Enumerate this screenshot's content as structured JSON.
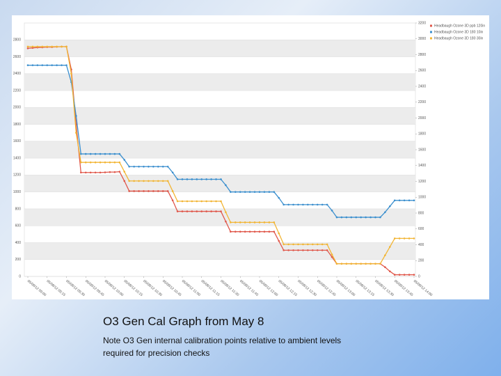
{
  "chart_data": {
    "type": "line",
    "categories": [
      "05/08/12 09:00",
      null,
      null,
      null,
      "05/08/12 09:15",
      null,
      null,
      null,
      "05/08/12 09:30",
      null,
      null,
      null,
      "05/08/12 09:45",
      null,
      null,
      null,
      "05/08/12 10:00",
      null,
      null,
      null,
      "05/08/12 10:15",
      null,
      null,
      null,
      "05/08/12 10:30",
      null,
      null,
      null,
      "05/08/12 10:45",
      null,
      null,
      null,
      "05/08/12 11:00",
      null,
      null,
      null,
      "05/08/12 11:15",
      null,
      null,
      null,
      "05/08/12 11:30",
      null,
      null,
      null,
      "05/08/12 11:45",
      null,
      null,
      null,
      "05/08/12 12:00",
      null,
      null,
      null,
      "05/08/12 12:15",
      null,
      null,
      null,
      "05/08/12 12:30",
      null,
      null,
      null,
      "05/08/12 12:45",
      null,
      null,
      null,
      "05/08/12 13:00",
      null,
      null,
      null,
      "05/08/12 13:15",
      null,
      null,
      null,
      "05/08/12 13:30",
      null,
      null,
      null,
      "05/08/12 13:45",
      null,
      null,
      null,
      "05/08/12 14:00"
    ],
    "series": [
      {
        "name": "Headbaugh Ozone 3D ppb 120in",
        "color": "#e0574a",
        "values": [
          2700,
          2705,
          2710,
          2712,
          2715,
          2715,
          2718,
          2720,
          2720,
          2450,
          1800,
          1230,
          1230,
          1230,
          1230,
          1230,
          1232,
          1235,
          1235,
          1240,
          1130,
          1010,
          1010,
          1010,
          1010,
          1010,
          1010,
          1010,
          1010,
          1010,
          900,
          770,
          770,
          770,
          770,
          770,
          770,
          770,
          770,
          770,
          770,
          650,
          530,
          530,
          530,
          530,
          530,
          530,
          530,
          530,
          530,
          530,
          420,
          310,
          310,
          310,
          310,
          310,
          310,
          310,
          310,
          310,
          310,
          230,
          150,
          150,
          150,
          150,
          150,
          150,
          150,
          150,
          150,
          150,
          110,
          60,
          20,
          20,
          20,
          20,
          20
        ]
      },
      {
        "name": "Headbaugh Ozone 3D 180 10in",
        "color": "#3b8fce",
        "values": [
          2500,
          2500,
          2500,
          2500,
          2500,
          2500,
          2500,
          2500,
          2500,
          2300,
          1900,
          1450,
          1450,
          1450,
          1450,
          1450,
          1450,
          1450,
          1450,
          1450,
          1380,
          1300,
          1300,
          1300,
          1300,
          1300,
          1300,
          1300,
          1300,
          1300,
          1230,
          1150,
          1150,
          1150,
          1150,
          1150,
          1150,
          1150,
          1150,
          1150,
          1150,
          1080,
          1000,
          1000,
          1000,
          1000,
          1000,
          1000,
          1000,
          1000,
          1000,
          1000,
          930,
          850,
          850,
          850,
          850,
          850,
          850,
          850,
          850,
          850,
          850,
          780,
          700,
          700,
          700,
          700,
          700,
          700,
          700,
          700,
          700,
          700,
          760,
          830,
          900,
          900,
          900,
          900,
          900
        ]
      },
      {
        "name": "Headbaugh Ozone 3D 180 30in",
        "color": "#f2b534",
        "values": [
          2720,
          2720,
          2720,
          2720,
          2720,
          2720,
          2720,
          2720,
          2720,
          2400,
          1700,
          1350,
          1350,
          1350,
          1350,
          1350,
          1350,
          1350,
          1350,
          1350,
          1240,
          1130,
          1130,
          1130,
          1130,
          1130,
          1130,
          1130,
          1130,
          1130,
          1010,
          890,
          890,
          890,
          890,
          890,
          890,
          890,
          890,
          890,
          890,
          760,
          640,
          640,
          640,
          640,
          640,
          640,
          640,
          640,
          640,
          640,
          510,
          380,
          380,
          380,
          380,
          380,
          380,
          380,
          380,
          380,
          380,
          260,
          150,
          150,
          150,
          150,
          150,
          150,
          150,
          150,
          150,
          150,
          250,
          350,
          450,
          450,
          450,
          450,
          450
        ]
      }
    ],
    "ylim": [
      0,
      3000
    ],
    "yticks": [
      0,
      200,
      400,
      600,
      800,
      1000,
      1200,
      1400,
      1600,
      1800,
      2000,
      2200,
      2400,
      2600,
      2800
    ],
    "y2lim": [
      0,
      3200
    ],
    "y2ticks": [
      0,
      200,
      400,
      600,
      800,
      1000,
      1200,
      1400,
      1600,
      1800,
      2000,
      2200,
      2400,
      2600,
      2800,
      3000,
      3200
    ],
    "grid": true,
    "legend": "top-right"
  },
  "caption": {
    "title": "O3 Gen Cal Graph from May 8",
    "note": "Note O3 Gen internal calibration points relative to ambient levels required for precision checks"
  }
}
